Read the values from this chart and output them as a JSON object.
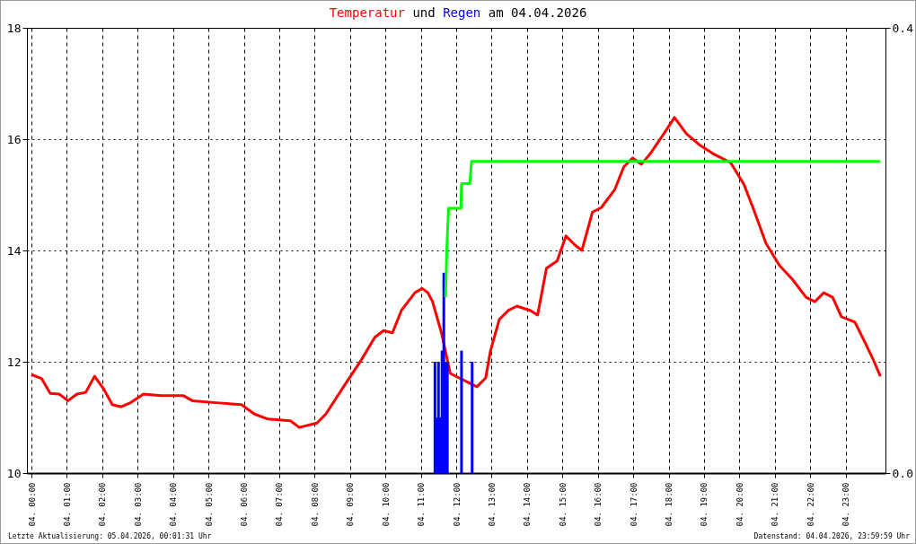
{
  "chart_data": {
    "type": "line",
    "title": "Temperatur und Regen am 04.04.2026",
    "annotations": [
      "Letzte Aktualisierung: 05.04.2026, 00:01:31 Uhr",
      "Datenstand: 04.04.2026, 23:59:59 Uhr"
    ],
    "xlim": [
      "2026-04-04T00:00",
      "2026-04-05T00:00"
    ],
    "xticks": [
      {
        "value": "2026-04-04T00:00",
        "label": "04. 00:00"
      },
      {
        "value": "2026-04-04T01:00",
        "label": "04. 01:00"
      },
      {
        "value": "2026-04-04T02:00",
        "label": "04. 02:00"
      },
      {
        "value": "2026-04-04T03:00",
        "label": "04. 03:00"
      },
      {
        "value": "2026-04-04T04:00",
        "label": "04. 04:00"
      },
      {
        "value": "2026-04-04T05:00",
        "label": "04. 05:00"
      },
      {
        "value": "2026-04-04T06:00",
        "label": "04. 06:00"
      },
      {
        "value": "2026-04-04T07:00",
        "label": "04. 07:00"
      },
      {
        "value": "2026-04-04T08:00",
        "label": "04. 08:00"
      },
      {
        "value": "2026-04-04T09:00",
        "label": "04. 09:00"
      },
      {
        "value": "2026-04-04T10:00",
        "label": "04. 10:00"
      },
      {
        "value": "2026-04-04T11:00",
        "label": "04. 11:00"
      },
      {
        "value": "2026-04-04T12:00",
        "label": "04. 12:00"
      },
      {
        "value": "2026-04-04T13:00",
        "label": "04. 13:00"
      },
      {
        "value": "2026-04-04T14:00",
        "label": "04. 14:00"
      },
      {
        "value": "2026-04-04T15:00",
        "label": "04. 15:00"
      },
      {
        "value": "2026-04-04T16:00",
        "label": "04. 16:00"
      },
      {
        "value": "2026-04-04T17:00",
        "label": "04. 17:00"
      },
      {
        "value": "2026-04-04T18:00",
        "label": "04. 18:00"
      },
      {
        "value": "2026-04-04T19:00",
        "label": "04. 19:00"
      },
      {
        "value": "2026-04-04T20:00",
        "label": "04. 20:00"
      },
      {
        "value": "2026-04-04T21:00",
        "label": "04. 21:00"
      },
      {
        "value": "2026-04-04T22:00",
        "label": "04. 22:00"
      },
      {
        "value": "2026-04-04T23:00",
        "label": "04. 23:00"
      }
    ],
    "ylim": [
      10,
      18
    ],
    "yticks": [
      10,
      12,
      14,
      16,
      18
    ],
    "y2lim": [
      0,
      0.4
    ],
    "y2ticks": [
      {
        "value": 0,
        "label": "0.0"
      },
      {
        "value": 0.4,
        "label": "0.4"
      }
    ],
    "grid": true,
    "marker": "none",
    "line_style": "solid",
    "series": [
      {
        "color": "#ff0000",
        "x": [
          "2026-04-04T00:00",
          "2026-04-04T00:17",
          "2026-04-04T00:32",
          "2026-04-04T00:47",
          "2026-04-04T01:02",
          "2026-04-04T01:17",
          "2026-04-04T01:32",
          "2026-04-04T01:47",
          "2026-04-04T02:02",
          "2026-04-04T02:17",
          "2026-04-04T02:32",
          "2026-04-04T02:47",
          "2026-04-04T03:10",
          "2026-04-04T03:40",
          "2026-04-04T04:18",
          "2026-04-04T04:33",
          "2026-04-04T05:18",
          "2026-04-04T05:56",
          "2026-04-04T06:18",
          "2026-04-04T06:41",
          "2026-04-04T07:19",
          "2026-04-04T07:34",
          "2026-04-04T08:04",
          "2026-04-04T08:19",
          "2026-04-04T08:49",
          "2026-04-04T09:19",
          "2026-04-04T09:42",
          "2026-04-04T09:57",
          "2026-04-04T10:12",
          "2026-04-04T10:27",
          "2026-04-04T10:50",
          "2026-04-04T11:02",
          "2026-04-04T11:12",
          "2026-04-04T11:20",
          "2026-04-04T11:35",
          "2026-04-04T11:50",
          "2026-04-04T12:05",
          "2026-04-04T12:20",
          "2026-04-04T12:35",
          "2026-04-04T12:50",
          "2026-04-04T12:58",
          "2026-04-04T13:13",
          "2026-04-04T13:28",
          "2026-04-04T13:43",
          "2026-04-04T14:06",
          "2026-04-04T14:18",
          "2026-04-04T14:33",
          "2026-04-04T14:51",
          "2026-04-04T15:06",
          "2026-04-04T15:21",
          "2026-04-04T15:33",
          "2026-04-04T15:51",
          "2026-04-04T16:06",
          "2026-04-04T16:29",
          "2026-04-04T16:44",
          "2026-04-04T16:59",
          "2026-04-04T17:14",
          "2026-04-04T17:29",
          "2026-04-04T17:52",
          "2026-04-04T18:10",
          "2026-04-04T18:30",
          "2026-04-04T18:52",
          "2026-04-04T19:15",
          "2026-04-04T19:45",
          "2026-04-04T20:08",
          "2026-04-04T20:23",
          "2026-04-04T20:45",
          "2026-04-04T21:08",
          "2026-04-04T21:30",
          "2026-04-04T21:53",
          "2026-04-04T22:08",
          "2026-04-04T22:23",
          "2026-04-04T22:38",
          "2026-04-04T22:53",
          "2026-04-04T23:16",
          "2026-04-04T23:31",
          "2026-04-04T23:46",
          "2026-04-04T23:59"
        ],
        "values": [
          11.77,
          11.7,
          11.43,
          11.42,
          11.3,
          11.42,
          11.45,
          11.74,
          11.52,
          11.23,
          11.19,
          11.26,
          11.42,
          11.39,
          11.39,
          11.3,
          11.26,
          11.23,
          11.06,
          10.97,
          10.94,
          10.82,
          10.9,
          11.06,
          11.55,
          12.03,
          12.44,
          12.56,
          12.52,
          12.92,
          13.24,
          13.32,
          13.24,
          13.08,
          12.52,
          11.79,
          11.71,
          11.63,
          11.55,
          11.71,
          12.19,
          12.76,
          12.92,
          13.0,
          12.92,
          12.84,
          13.68,
          13.81,
          14.26,
          14.1,
          14.0,
          14.69,
          14.77,
          15.1,
          15.5,
          15.66,
          15.55,
          15.74,
          16.1,
          16.39,
          16.1,
          15.9,
          15.74,
          15.58,
          15.18,
          14.77,
          14.13,
          13.73,
          13.48,
          13.16,
          13.08,
          13.24,
          13.16,
          12.81,
          12.71,
          12.39,
          12.06,
          11.74
        ]
      },
      {
        "type": "bar",
        "color": "#0000ff",
        "axis": "y2",
        "x": [
          "2026-04-04T11:24",
          "2026-04-04T11:27",
          "2026-04-04T11:30",
          "2026-04-04T11:33",
          "2026-04-04T11:36",
          "2026-04-04T11:39",
          "2026-04-04T11:42",
          "2026-04-04T11:45",
          "2026-04-04T12:09",
          "2026-04-04T12:27"
        ],
        "values": [
          0.1,
          0.05,
          0.1,
          0.05,
          0.11,
          0.18,
          0.1,
          0.1,
          0.11,
          0.1
        ]
      },
      {
        "type": "line",
        "color": "#00ff00",
        "axis": "y2",
        "x": [
          "2026-04-04T11:42",
          "2026-04-04T11:44",
          "2026-04-04T11:47",
          "2026-04-04T12:08",
          "2026-04-04T12:09",
          "2026-04-04T12:23",
          "2026-04-04T12:26",
          "2026-04-04T23:59"
        ],
        "values": [
          0.158,
          0.2,
          0.238,
          0.238,
          0.26,
          0.26,
          0.28,
          0.28
        ]
      }
    ]
  }
}
